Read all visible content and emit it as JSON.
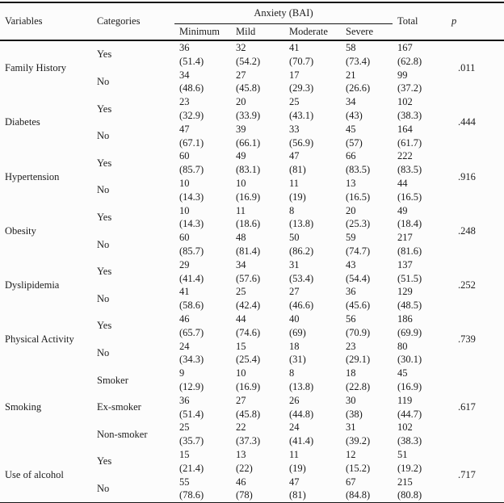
{
  "table": {
    "header": {
      "variables": "Variables",
      "categories": "Categories",
      "anxiety_group": "Anxiety (BAI)",
      "subcolumns": [
        "Minimum",
        "Mild",
        "Moderate",
        "Severe"
      ],
      "total": "Total",
      "p": "p"
    },
    "groups": [
      {
        "variable": "Family History",
        "p": ".011",
        "categories": [
          {
            "label": "Yes",
            "counts": [
              "36",
              "32",
              "41",
              "58",
              "167"
            ],
            "percents": [
              "(51.4)",
              "(54.2)",
              "(70.7)",
              "(73.4)",
              "(62.8)"
            ]
          },
          {
            "label": "No",
            "counts": [
              "34",
              "27",
              "17",
              "21",
              "99"
            ],
            "percents": [
              "(48.6)",
              "(45.8)",
              "(29.3)",
              "(26.6)",
              "(37.2)"
            ]
          }
        ]
      },
      {
        "variable": "Diabetes",
        "p": ".444",
        "categories": [
          {
            "label": "Yes",
            "counts": [
              "23",
              "20",
              "25",
              "34",
              "102"
            ],
            "percents": [
              "(32.9)",
              "(33.9)",
              "(43.1)",
              "(43)",
              "(38.3)"
            ]
          },
          {
            "label": "No",
            "counts": [
              "47",
              "39",
              "33",
              "45",
              "164"
            ],
            "percents": [
              "(67.1)",
              "(66.1)",
              "(56.9)",
              "(57)",
              "(61.7)"
            ]
          }
        ]
      },
      {
        "variable": "Hypertension",
        "p": ".916",
        "categories": [
          {
            "label": "Yes",
            "counts": [
              "60",
              "49",
              "47",
              "66",
              "222"
            ],
            "percents": [
              "(85.7)",
              "(83.1)",
              "(81)",
              "(83.5)",
              "(83.5)"
            ]
          },
          {
            "label": "No",
            "counts": [
              "10",
              "10",
              "11",
              "13",
              "44"
            ],
            "percents": [
              "(14.3)",
              "(16.9)",
              "(19)",
              "(16.5)",
              "(16.5)"
            ]
          }
        ]
      },
      {
        "variable": "Obesity",
        "p": ".248",
        "categories": [
          {
            "label": "Yes",
            "counts": [
              "10",
              "11",
              "8",
              "20",
              "49"
            ],
            "percents": [
              "(14.3)",
              "(18.6)",
              "(13.8)",
              "(25.3)",
              "(18.4)"
            ]
          },
          {
            "label": "No",
            "counts": [
              "60",
              "48",
              "50",
              "59",
              "217"
            ],
            "percents": [
              "(85.7)",
              "(81.4)",
              "(86.2)",
              "(74.7)",
              "(81.6)"
            ]
          }
        ]
      },
      {
        "variable": "Dyslipidemia",
        "p": ".252",
        "categories": [
          {
            "label": "Yes",
            "counts": [
              "29",
              "34",
              "31",
              "43",
              "137"
            ],
            "percents": [
              "(41.4)",
              "(57.6)",
              "(53.4)",
              "(54.4)",
              "(51.5)"
            ]
          },
          {
            "label": "No",
            "counts": [
              "41",
              "25",
              "27",
              "36",
              "129"
            ],
            "percents": [
              "(58.6)",
              "(42.4)",
              "(46.6)",
              "(45.6)",
              "(48.5)"
            ]
          }
        ]
      },
      {
        "variable": "Physical Activity",
        "p": ".739",
        "categories": [
          {
            "label": "Yes",
            "counts": [
              "46",
              "44",
              "40",
              "56",
              "186"
            ],
            "percents": [
              "(65.7)",
              "(74.6)",
              "(69)",
              "(70.9)",
              "(69.9)"
            ]
          },
          {
            "label": "No",
            "counts": [
              "24",
              "15",
              "18",
              "23",
              "80"
            ],
            "percents": [
              "(34.3)",
              "(25.4)",
              "(31)",
              "(29.1)",
              "(30.1)"
            ]
          }
        ]
      },
      {
        "variable": "Smoking",
        "p": ".617",
        "categories": [
          {
            "label": "Smoker",
            "counts": [
              "9",
              "10",
              "8",
              "18",
              "45"
            ],
            "percents": [
              "(12.9)",
              "(16.9)",
              "(13.8)",
              "(22.8)",
              "(16.9)"
            ]
          },
          {
            "label": "Ex-smoker",
            "counts": [
              "36",
              "27",
              "26",
              "30",
              "119"
            ],
            "percents": [
              "(51.4)",
              "(45.8)",
              "(44.8)",
              "(38)",
              "(44.7)"
            ]
          },
          {
            "label": "Non-smoker",
            "counts": [
              "25",
              "22",
              "24",
              "31",
              "102"
            ],
            "percents": [
              "(35.7)",
              "(37.3)",
              "(41.4)",
              "(39.2)",
              "(38.3)"
            ]
          }
        ]
      },
      {
        "variable": "Use of alcohol",
        "p": ".717",
        "categories": [
          {
            "label": "Yes",
            "counts": [
              "15",
              "13",
              "11",
              "12",
              "51"
            ],
            "percents": [
              "(21.4)",
              "(22)",
              "(19)",
              "(15.2)",
              "(19.2)"
            ]
          },
          {
            "label": "No",
            "counts": [
              "55",
              "46",
              "47",
              "67",
              "215"
            ],
            "percents": [
              "(78.6)",
              "(78)",
              "(81)",
              "(84.8)",
              "(80.8)"
            ]
          }
        ]
      }
    ]
  }
}
